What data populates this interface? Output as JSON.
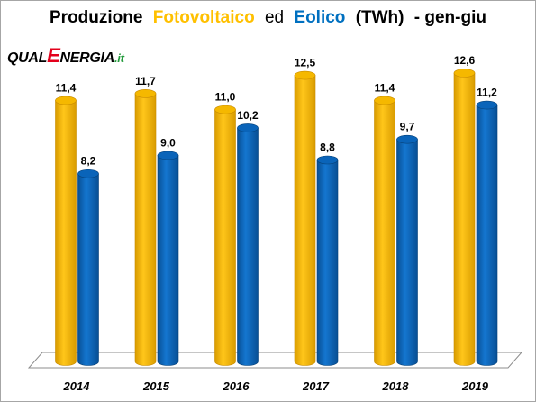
{
  "title": {
    "part1": "Produzione",
    "part2": "Fotovoltaico",
    "part3": "ed",
    "part4": "Eolico",
    "part5": "(TWh)",
    "part6": "- gen-giu"
  },
  "logo": {
    "part1": "QUAL",
    "part2": "E",
    "part3": "NERGIA",
    "part4": ".it"
  },
  "colors": {
    "solar": "#f5b800",
    "solar_dark": "#c98c00",
    "wind": "#0a64b9",
    "wind_dark": "#06427a",
    "title_solar": "#ffc000",
    "title_wind": "#0070c0",
    "logo_dark": "#000000",
    "logo_red": "#e3001b",
    "logo_green": "#239b3c"
  },
  "chart_data": {
    "type": "bar",
    "categories": [
      "2014",
      "2015",
      "2016",
      "2017",
      "2018",
      "2019"
    ],
    "series": [
      {
        "name": "Fotovoltaico",
        "values": [
          11.4,
          11.7,
          11.0,
          12.5,
          11.4,
          12.6
        ],
        "labels": [
          "11,4",
          "11,7",
          "11,0",
          "12,5",
          "11,4",
          "12,6"
        ]
      },
      {
        "name": "Eolico",
        "values": [
          8.2,
          9.0,
          10.2,
          8.8,
          9.7,
          11.2
        ],
        "labels": [
          "8,2",
          "9,0",
          "10,2",
          "8,8",
          "9,7",
          "11,2"
        ]
      }
    ],
    "ylim": [
      0,
      12.6
    ],
    "grid": false,
    "legend": "none"
  }
}
